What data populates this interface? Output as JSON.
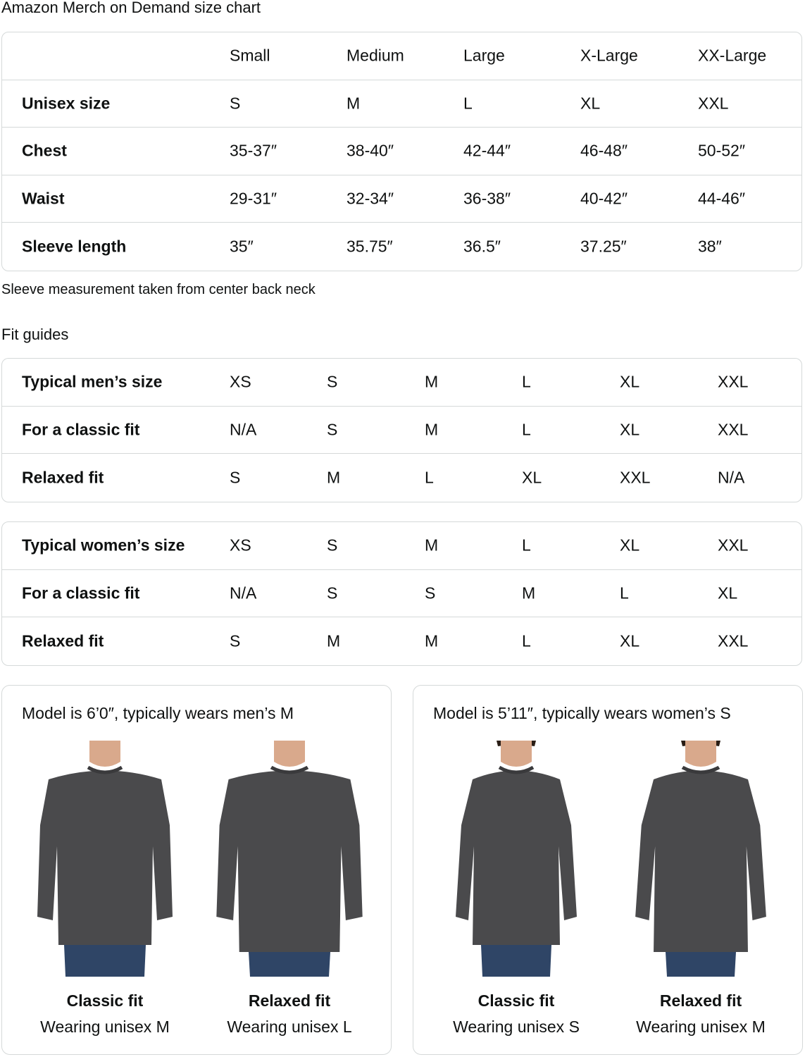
{
  "title": "Amazon Merch on Demand size chart",
  "size_chart": {
    "headers": [
      "",
      "Small",
      "Medium",
      "Large",
      "X-Large",
      "XX-Large"
    ],
    "rows": [
      [
        "Unisex size",
        "S",
        "M",
        "L",
        "XL",
        "XXL"
      ],
      [
        "Chest",
        "35-37″",
        "38-40″",
        "42-44″",
        "46-48″",
        "50-52″"
      ],
      [
        "Waist",
        "29-31″",
        "32-34″",
        "36-38″",
        "40-42″",
        "44-46″"
      ],
      [
        "Sleeve length",
        "35″",
        "35.75″",
        "36.5″",
        "37.25″",
        "38″"
      ]
    ]
  },
  "sleeve_note": "Sleeve measurement taken from center back neck",
  "fit_guides_title": "Fit guides",
  "mens_fit": {
    "rows": [
      [
        "Typical men’s size",
        "XS",
        "S",
        "M",
        "L",
        "XL",
        "XXL"
      ],
      [
        "For a classic fit",
        "N/A",
        "S",
        "M",
        "L",
        "XL",
        "XXL"
      ],
      [
        "Relaxed fit",
        "S",
        "M",
        "L",
        "XL",
        "XXL",
        "N/A"
      ]
    ]
  },
  "womens_fit": {
    "rows": [
      [
        "Typical women’s size",
        "XS",
        "S",
        "M",
        "L",
        "XL",
        "XXL"
      ],
      [
        "For a classic fit",
        "N/A",
        "S",
        "S",
        "M",
        "L",
        "XL"
      ],
      [
        "Relaxed fit",
        "S",
        "M",
        "M",
        "L",
        "XL",
        "XXL"
      ]
    ]
  },
  "models": [
    {
      "title": "Model is 6’0″, typically wears men’s M",
      "figures": [
        {
          "name": "Classic fit",
          "sub": "Wearing unisex M"
        },
        {
          "name": "Relaxed fit",
          "sub": "Wearing unisex L"
        }
      ]
    },
    {
      "title": "Model is 5’11″, typically wears women’s S",
      "figures": [
        {
          "name": "Classic fit",
          "sub": "Wearing unisex S"
        },
        {
          "name": "Relaxed fit",
          "sub": "Wearing unisex M"
        }
      ]
    }
  ],
  "colors": {
    "border": "#d5d9d9",
    "sweatshirt": "#4a4a4c",
    "jeans": "#2f4566",
    "skin": "#d9a98c"
  }
}
